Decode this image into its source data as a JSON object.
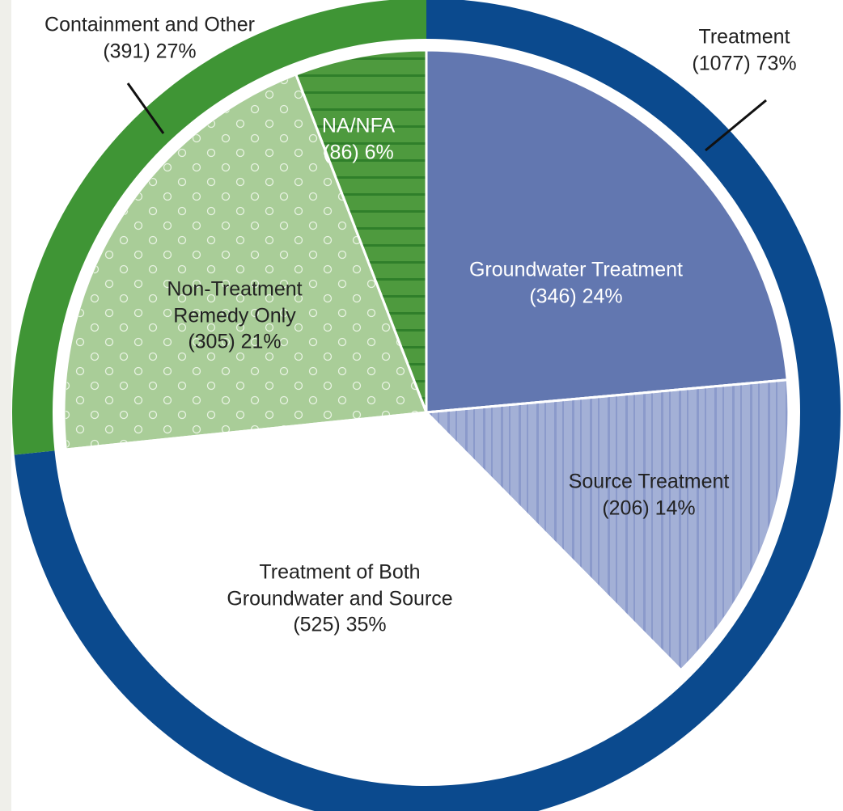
{
  "chart_data": [
    {
      "type": "ring",
      "categories": [
        "Treatment",
        "Containment and Other"
      ],
      "values": [
        1077,
        391
      ],
      "value_labels": [
        "(1077) 73%",
        "(391) 27%"
      ],
      "colors": [
        "#0b4a8e",
        "#3f9535"
      ]
    },
    {
      "type": "pie",
      "categories": [
        "Groundwater Treatment",
        "Source Treatment",
        "Treatment of Both Groundwater and Source",
        "Non-Treatment Remedy Only",
        "NA/NFA"
      ],
      "values": [
        346,
        206,
        525,
        305,
        86
      ],
      "value_labels": [
        "(346) 24%",
        "(206) 14%",
        "(525) 35%",
        "(305) 21%",
        "(86) 6%"
      ],
      "colors": [
        "#6277b0",
        "#a3b0d6",
        "#ffffff",
        "#a9cd98",
        "#4e9a3e"
      ]
    }
  ]
}
